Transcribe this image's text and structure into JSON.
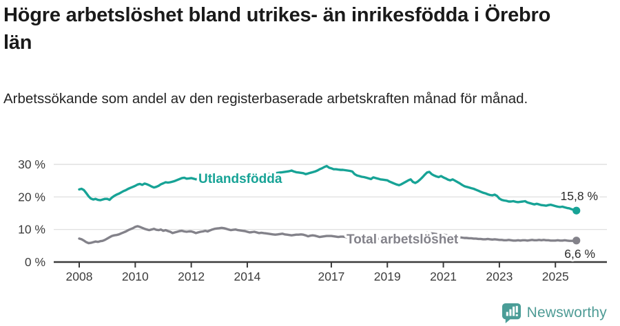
{
  "header": {
    "title": "Högre arbetslöshet bland utrikes- än inrikesfödda i Örebro län",
    "subtitle": "Arbetssökande som andel av den registerbaserade arbetskraften månad för månad."
  },
  "footer": {
    "brand": "Newsworthy"
  },
  "colors": {
    "accent_teal": "#17A396",
    "neutral_gray": "#83828A",
    "logo_teal": "#4A9D97",
    "gridline": "#DBDBDB",
    "axis": "#3A3A3A"
  },
  "chart_data": {
    "type": "line",
    "title": "Högre arbetslöshet bland utrikes- än inrikesfödda i Örebro län",
    "subtitle": "Arbetssökande som andel av den registerbaserade arbetskraften månad för månad.",
    "unit": "%",
    "x_start_year": 2008,
    "points_per_year": 12,
    "xlim": [
      2008,
      2025.83
    ],
    "ylim": [
      0,
      32
    ],
    "grid": "horizontal",
    "x_ticks": [
      2008,
      2010,
      2012,
      2014,
      2017,
      2019,
      2021,
      2023,
      2025
    ],
    "x_tick_labels": [
      "2008",
      "2010",
      "2012",
      "2014",
      "2017",
      "2019",
      "2021",
      "2023",
      "2025"
    ],
    "y_ticks": [
      0,
      10,
      20,
      30
    ],
    "y_tick_labels": [
      "0 %",
      "10 %",
      "20 %",
      "30 %"
    ],
    "series": [
      {
        "name": "Utlandsfödda",
        "color": "#17A396",
        "end_value": 15.8,
        "end_label": "15,8 %",
        "values": [
          22.3,
          22.5,
          22.1,
          21.2,
          20.2,
          19.5,
          19.2,
          19.4,
          19.1,
          19.0,
          19.2,
          19.4,
          19.4,
          19.1,
          19.8,
          20.3,
          20.7,
          21.0,
          21.4,
          21.8,
          22.1,
          22.5,
          22.8,
          23.1,
          23.4,
          23.8,
          24.0,
          23.7,
          24.1,
          23.9,
          23.6,
          23.2,
          22.9,
          23.1,
          23.4,
          23.9,
          24.2,
          24.5,
          24.4,
          24.5,
          24.7,
          24.9,
          25.2,
          25.5,
          25.8,
          25.9,
          25.6,
          25.7,
          25.8,
          25.6,
          25.4,
          25.7,
          25.9,
          26.0,
          26.1,
          26.0,
          25.9,
          26.0,
          26.1,
          26.2,
          26.2,
          26.3,
          26.4,
          26.3,
          26.2,
          26.3,
          26.4,
          26.5,
          26.4,
          26.3,
          26.4,
          26.5,
          26.5,
          26.6,
          26.5,
          26.6,
          26.7,
          26.6,
          26.7,
          26.8,
          26.9,
          27.0,
          27.1,
          27.2,
          27.3,
          27.4,
          27.5,
          27.6,
          27.7,
          27.8,
          27.9,
          28.1,
          27.8,
          27.6,
          27.5,
          27.4,
          27.3,
          27.0,
          27.2,
          27.4,
          27.6,
          27.8,
          28.1,
          28.5,
          28.8,
          29.2,
          29.5,
          29.0,
          28.8,
          28.5,
          28.5,
          28.4,
          28.3,
          28.3,
          28.2,
          28.1,
          28.0,
          27.8,
          27.0,
          26.6,
          26.4,
          26.2,
          26.1,
          25.9,
          25.7,
          25.5,
          26.0,
          25.8,
          25.6,
          25.4,
          25.3,
          25.2,
          25.1,
          24.7,
          24.4,
          24.1,
          23.8,
          23.6,
          23.9,
          24.3,
          24.7,
          25.1,
          25.4,
          24.6,
          24.3,
          24.7,
          25.3,
          26.0,
          26.8,
          27.5,
          27.7,
          27.0,
          26.6,
          26.3,
          26.1,
          26.4,
          26.0,
          25.7,
          25.3,
          25.1,
          25.4,
          25.0,
          24.6,
          24.2,
          23.7,
          23.3,
          23.1,
          22.9,
          22.7,
          22.5,
          22.2,
          21.9,
          21.6,
          21.3,
          21.1,
          20.8,
          20.6,
          20.5,
          20.7,
          20.3,
          19.5,
          19.1,
          18.9,
          18.8,
          18.6,
          18.6,
          18.7,
          18.5,
          18.4,
          18.5,
          18.6,
          18.7,
          18.3,
          18.1,
          17.9,
          17.7,
          17.9,
          17.7,
          17.5,
          17.4,
          17.3,
          17.5,
          17.6,
          17.4,
          17.2,
          17.0,
          16.9,
          17.0,
          16.8,
          16.6,
          16.5,
          16.2,
          16.0,
          15.8
        ]
      },
      {
        "name": "Total arbetslöshet",
        "color": "#83828A",
        "end_value": 6.6,
        "end_label": "6,6 %",
        "values": [
          7.2,
          7.0,
          6.6,
          6.1,
          5.8,
          5.9,
          6.1,
          6.3,
          6.2,
          6.4,
          6.5,
          6.8,
          7.2,
          7.6,
          8.0,
          8.2,
          8.3,
          8.5,
          8.8,
          9.1,
          9.4,
          9.8,
          10.1,
          10.4,
          10.8,
          11.0,
          10.8,
          10.5,
          10.2,
          10.0,
          9.8,
          10.0,
          10.2,
          9.9,
          9.8,
          10.0,
          9.6,
          9.8,
          9.5,
          9.3,
          8.9,
          9.1,
          9.3,
          9.5,
          9.6,
          9.4,
          9.3,
          9.4,
          9.4,
          9.2,
          8.9,
          9.1,
          9.3,
          9.4,
          9.6,
          9.4,
          9.7,
          10.0,
          10.2,
          10.3,
          10.4,
          10.5,
          10.4,
          10.2,
          10.0,
          9.8,
          9.9,
          10.0,
          9.8,
          9.7,
          9.6,
          9.5,
          9.3,
          9.1,
          9.2,
          9.3,
          9.1,
          8.9,
          9.0,
          8.9,
          8.8,
          8.7,
          8.6,
          8.5,
          8.4,
          8.5,
          8.6,
          8.7,
          8.5,
          8.4,
          8.3,
          8.2,
          8.3,
          8.4,
          8.4,
          8.5,
          8.4,
          8.2,
          7.9,
          8.1,
          8.2,
          8.1,
          7.9,
          7.7,
          7.8,
          7.9,
          8.0,
          8.0,
          8.0,
          7.9,
          7.8,
          7.7,
          7.8,
          7.8,
          7.7,
          7.6,
          7.6,
          7.5,
          7.5,
          7.4,
          7.4,
          7.3,
          7.3,
          7.2,
          7.2,
          7.1,
          7.2,
          7.2,
          7.1,
          7.2,
          7.2,
          7.3,
          7.2,
          7.2,
          7.1,
          7.1,
          7.2,
          7.2,
          7.3,
          7.3,
          7.4,
          7.4,
          7.5,
          7.5,
          7.6,
          7.8,
          8.2,
          8.6,
          8.9,
          9.0,
          8.9,
          8.8,
          8.7,
          8.6,
          8.5,
          8.5,
          8.4,
          8.3,
          8.1,
          8.0,
          7.9,
          7.8,
          7.7,
          7.6,
          7.5,
          7.4,
          7.4,
          7.3,
          7.3,
          7.2,
          7.2,
          7.1,
          7.1,
          7.0,
          7.0,
          7.1,
          7.0,
          6.9,
          7.0,
          6.9,
          6.8,
          6.8,
          6.7,
          6.7,
          6.8,
          6.7,
          6.6,
          6.6,
          6.7,
          6.6,
          6.7,
          6.7,
          6.6,
          6.7,
          6.8,
          6.7,
          6.7,
          6.8,
          6.7,
          6.8,
          6.7,
          6.7,
          6.6,
          6.6,
          6.6,
          6.7,
          6.6,
          6.6,
          6.7,
          6.6,
          6.5,
          6.5,
          6.5,
          6.6
        ]
      }
    ],
    "legend_position": "inline-on-line"
  }
}
